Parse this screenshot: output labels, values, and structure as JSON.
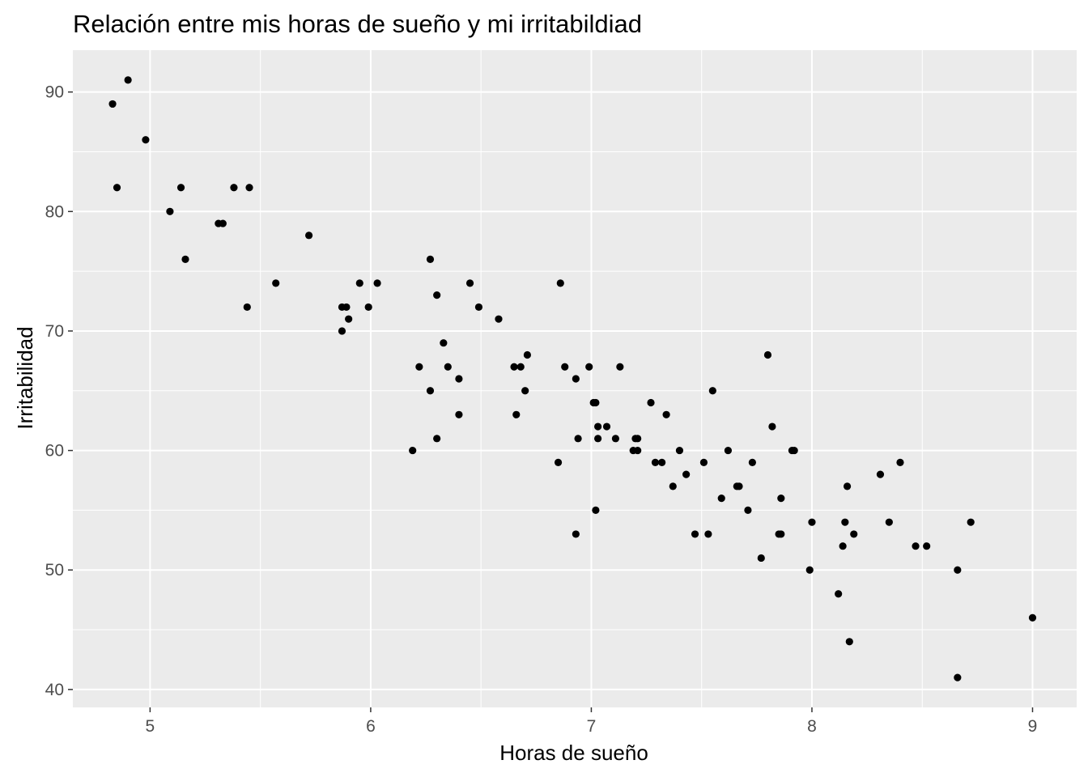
{
  "chart_data": {
    "type": "scatter",
    "title": "Relación entre mis horas de sueño y mi irritabildiad",
    "xlabel": "Horas de sueño",
    "ylabel": "Irritabilidad",
    "xlim": [
      4.65,
      9.2
    ],
    "ylim": [
      38.5,
      93.5
    ],
    "x_ticks": [
      5,
      6,
      7,
      8,
      9
    ],
    "y_ticks": [
      40,
      50,
      60,
      70,
      80,
      90
    ],
    "grid": true,
    "panel_color": "#ebebeb",
    "point_color": "#000000",
    "points": [
      [
        4.83,
        89
      ],
      [
        4.9,
        91
      ],
      [
        4.85,
        82
      ],
      [
        4.98,
        86
      ],
      [
        5.09,
        80
      ],
      [
        5.14,
        82
      ],
      [
        5.16,
        76
      ],
      [
        5.31,
        79
      ],
      [
        5.33,
        79
      ],
      [
        5.38,
        82
      ],
      [
        5.44,
        72
      ],
      [
        5.45,
        82
      ],
      [
        5.57,
        74
      ],
      [
        5.72,
        78
      ],
      [
        5.87,
        72
      ],
      [
        5.87,
        70
      ],
      [
        5.89,
        72
      ],
      [
        5.9,
        71
      ],
      [
        5.95,
        74
      ],
      [
        5.99,
        72
      ],
      [
        6.03,
        74
      ],
      [
        6.19,
        60
      ],
      [
        6.22,
        67
      ],
      [
        6.27,
        76
      ],
      [
        6.27,
        65
      ],
      [
        6.3,
        73
      ],
      [
        6.3,
        61
      ],
      [
        6.33,
        69
      ],
      [
        6.35,
        67
      ],
      [
        6.4,
        66
      ],
      [
        6.4,
        63
      ],
      [
        6.45,
        74
      ],
      [
        6.49,
        72
      ],
      [
        6.58,
        71
      ],
      [
        6.65,
        67
      ],
      [
        6.66,
        63
      ],
      [
        6.68,
        67
      ],
      [
        6.7,
        65
      ],
      [
        6.71,
        68
      ],
      [
        6.85,
        59
      ],
      [
        6.86,
        74
      ],
      [
        6.88,
        67
      ],
      [
        6.93,
        66
      ],
      [
        6.93,
        53
      ],
      [
        6.94,
        61
      ],
      [
        6.99,
        67
      ],
      [
        7.01,
        64
      ],
      [
        7.02,
        64
      ],
      [
        7.02,
        55
      ],
      [
        7.03,
        62
      ],
      [
        7.03,
        61
      ],
      [
        7.07,
        62
      ],
      [
        7.11,
        61
      ],
      [
        7.13,
        67
      ],
      [
        7.19,
        60
      ],
      [
        7.2,
        61
      ],
      [
        7.21,
        61
      ],
      [
        7.21,
        60
      ],
      [
        7.27,
        64
      ],
      [
        7.29,
        59
      ],
      [
        7.32,
        59
      ],
      [
        7.34,
        63
      ],
      [
        7.37,
        57
      ],
      [
        7.4,
        60
      ],
      [
        7.43,
        58
      ],
      [
        7.47,
        53
      ],
      [
        7.51,
        59
      ],
      [
        7.53,
        53
      ],
      [
        7.55,
        65
      ],
      [
        7.59,
        56
      ],
      [
        7.62,
        60
      ],
      [
        7.66,
        57
      ],
      [
        7.67,
        57
      ],
      [
        7.71,
        55
      ],
      [
        7.73,
        59
      ],
      [
        7.77,
        51
      ],
      [
        7.8,
        68
      ],
      [
        7.82,
        62
      ],
      [
        7.85,
        53
      ],
      [
        7.86,
        56
      ],
      [
        7.86,
        53
      ],
      [
        7.91,
        60
      ],
      [
        7.92,
        60
      ],
      [
        7.99,
        50
      ],
      [
        8.0,
        54
      ],
      [
        8.12,
        48
      ],
      [
        8.14,
        52
      ],
      [
        8.15,
        54
      ],
      [
        8.16,
        57
      ],
      [
        8.17,
        44
      ],
      [
        8.19,
        53
      ],
      [
        8.31,
        58
      ],
      [
        8.35,
        54
      ],
      [
        8.4,
        59
      ],
      [
        8.47,
        52
      ],
      [
        8.52,
        52
      ],
      [
        8.66,
        50
      ],
      [
        8.66,
        41
      ],
      [
        8.72,
        54
      ],
      [
        9.0,
        46
      ]
    ]
  }
}
